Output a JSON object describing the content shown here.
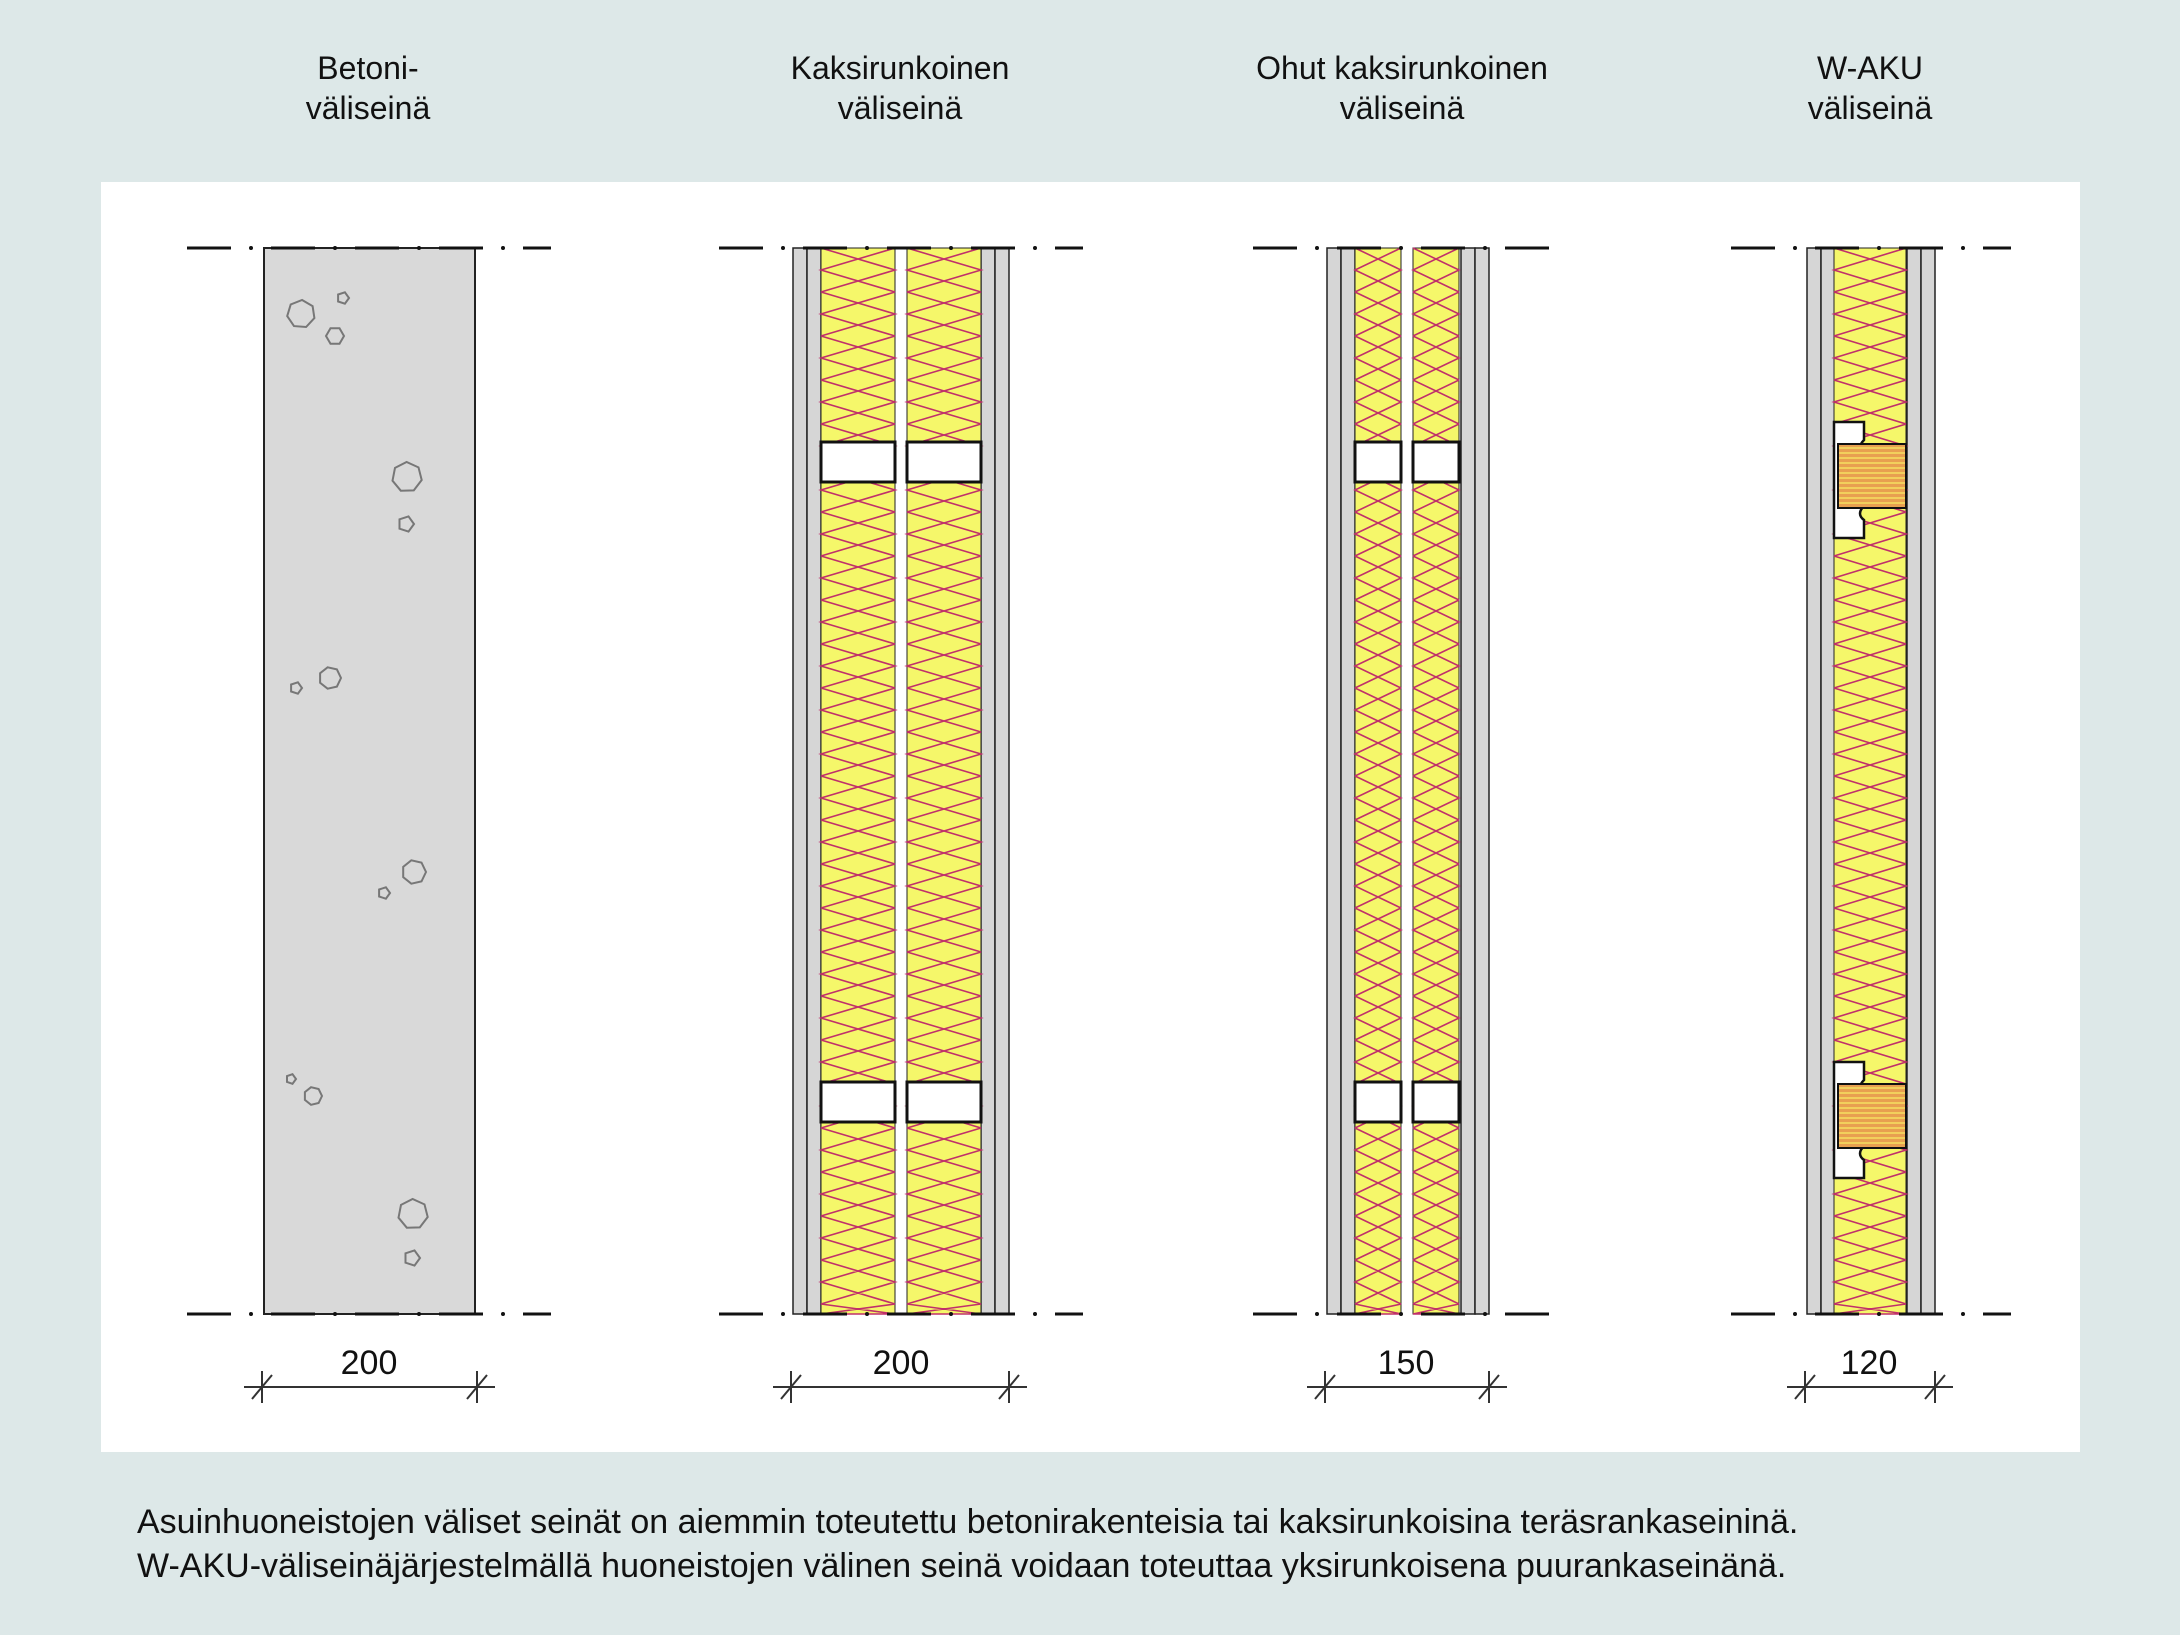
{
  "walls": [
    {
      "id": "betoni",
      "title_line1": "Betoni-",
      "title_line2": "väliseinä",
      "thickness_label": "200",
      "type": "concrete"
    },
    {
      "id": "kaksirunkoinen",
      "title_line1": "Kaksirunkoinen",
      "title_line2": "väliseinä",
      "thickness_label": "200",
      "type": "double-steel"
    },
    {
      "id": "ohut-kaksirunkoinen",
      "title_line1": "Ohut kaksirunkoinen",
      "title_line2": "väliseinä",
      "thickness_label": "150",
      "type": "thin-double-steel"
    },
    {
      "id": "w-aku",
      "title_line1": "W-AKU",
      "title_line2": "väliseinä",
      "thickness_label": "120",
      "type": "single-timber"
    }
  ],
  "caption": {
    "line1": "Asuinhuoneistojen väliset seinät on aiemmin toteutettu betonirakenteisia tai kaksirunkoisina teräsrankaseininä.",
    "line2": "W-AKU-väliseinäjärjestelmällä huoneistojen välinen seinä voidaan toteuttaa yksirunkoisena puurankaseinänä."
  },
  "colors": {
    "background": "#dde8e8",
    "panel": "#ffffff",
    "concrete": "#d9d9d9",
    "board": "#d6d6d6",
    "insulation": "#f5f76a",
    "insulation_line": "#c0306a",
    "timber": "#e8a050",
    "timber_line": "#f5e060"
  }
}
